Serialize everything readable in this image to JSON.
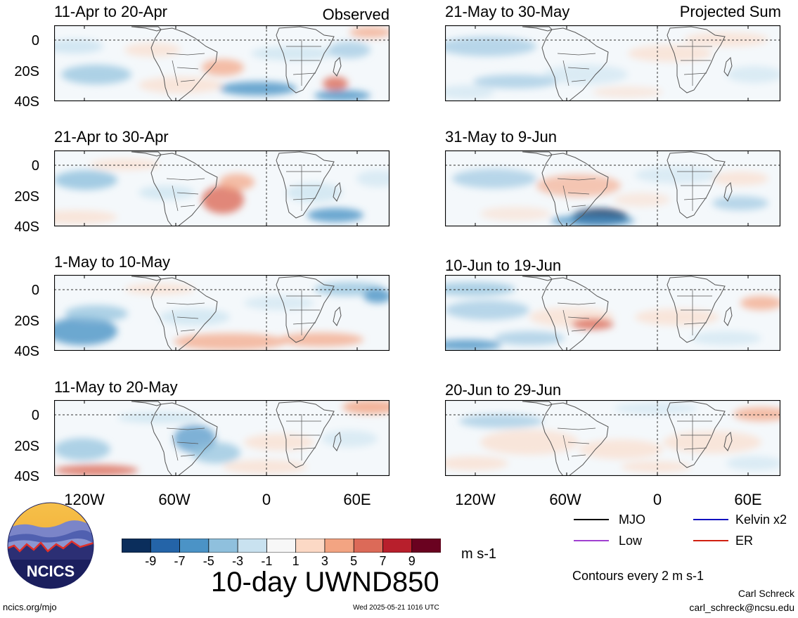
{
  "headings": {
    "left": "Observed",
    "right": "Projected Sum"
  },
  "left_panels": [
    {
      "title": "11-Apr to 20-Apr"
    },
    {
      "title": "21-Apr to 30-Apr"
    },
    {
      "title": "1-May to 10-May"
    },
    {
      "title": "11-May to 20-May"
    }
  ],
  "right_panels": [
    {
      "title": "21-May to 30-May"
    },
    {
      "title": "31-May to 9-Jun"
    },
    {
      "title": "10-Jun to 19-Jun"
    },
    {
      "title": "20-Jun to 29-Jun"
    }
  ],
  "y_ticks": [
    "0",
    "20S",
    "40S"
  ],
  "x_ticks": [
    "120W",
    "60W",
    "0",
    "60E"
  ],
  "colorbar": {
    "colors": [
      "#0b2e5c",
      "#2464a8",
      "#4b93c6",
      "#8fc0dd",
      "#c9e2f0",
      "#f7f7f7",
      "#fcd9c5",
      "#f3a482",
      "#dc6a58",
      "#b81f2c",
      "#6a0220"
    ],
    "labels": [
      "-9",
      "-7",
      "-5",
      "-3",
      "-1",
      "1",
      "3",
      "5",
      "7",
      "9"
    ],
    "units": "m s-1"
  },
  "chart_title": "10-day UWND850",
  "legend": [
    {
      "label": "MJO",
      "color": "#000000"
    },
    {
      "label": "Kelvin x2",
      "color": "#1010c0"
    },
    {
      "label": "Low",
      "color": "#a040d0"
    },
    {
      "label": "ER",
      "color": "#d02010"
    }
  ],
  "contour_note": "Contours every 2 m s-1",
  "logo_text": "NCICS",
  "footer": {
    "url": "ncics.org/mjo",
    "timestamp": "Wed 2025-05-21 1016 UTC",
    "author": "Carl Schreck",
    "email": "carl_schreck@ncsu.edu"
  }
}
